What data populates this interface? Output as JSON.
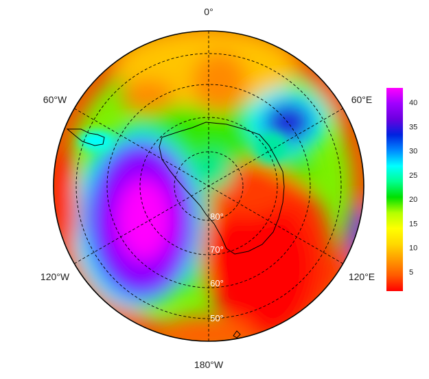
{
  "map": {
    "projection": "south-polar-stereographic",
    "longitude_labels": {
      "top": "0°",
      "upper_left": "60°W",
      "upper_right": "60°E",
      "lower_left": "120°W",
      "lower_right": "120°E",
      "bottom": "180°W"
    },
    "latitude_labels": [
      "80°",
      "70°",
      "60°",
      "50°"
    ],
    "graticule_style": "dashed",
    "features": [
      "antarctica-coastline",
      "south-america-tip",
      "new-zealand-outline"
    ]
  },
  "colorbar": {
    "ticks": [
      "5",
      "10",
      "15",
      "20",
      "25",
      "30",
      "35",
      "40"
    ],
    "range": [
      1,
      43
    ],
    "colors": [
      "#ff0000",
      "#ff5a00",
      "#ff9a00",
      "#ffd800",
      "#ffff00",
      "#b4ff00",
      "#00e000",
      "#00ff90",
      "#00ffff",
      "#0088ff",
      "#0022e0",
      "#6a00e0",
      "#a000ff",
      "#ff00ff"
    ]
  },
  "chart_data": {
    "type": "heatmap",
    "field_regions": [
      {
        "region": "Pacific sector (south of Pacific, 120°W–180°)",
        "value": 38
      },
      {
        "region": "Indian Ocean sector (60°E–90°E)",
        "value": 33
      },
      {
        "region": "Eastern hemisphere interior (East Antarctica–NZ)",
        "value": 3
      },
      {
        "region": "Atlantic sector (0°)",
        "value": 10
      },
      {
        "region": "Outer belt 60°W",
        "value": 6
      },
      {
        "region": "Ring around continent",
        "value": 18
      }
    ],
    "colorbar_ticks": [
      5,
      10,
      15,
      20,
      25,
      30,
      35,
      40
    ],
    "colorbar_range": [
      1,
      43
    ]
  }
}
